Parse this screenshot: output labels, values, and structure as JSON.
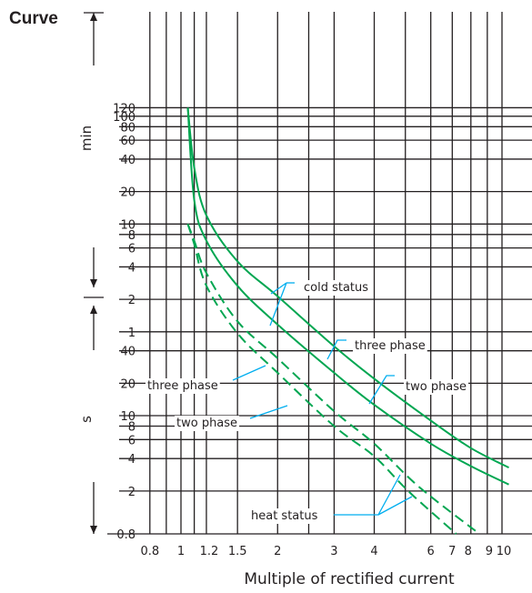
{
  "heading": "Curve",
  "chart_data": {
    "type": "line",
    "xlabel": "Multiple of rectified current",
    "x_scale": "log",
    "xlim": [
      0.7,
      11
    ],
    "x_ticks": [
      0.8,
      1,
      1.2,
      1.5,
      2,
      3,
      4,
      6,
      7,
      8,
      9,
      10
    ],
    "x_tick_labels": [
      "0.8",
      "1",
      "1.2",
      "1.5",
      "2",
      "3",
      "4",
      "6",
      "7",
      "8",
      "9",
      "10"
    ],
    "x_grid": [
      0.8,
      0.9,
      1,
      1.1,
      1.2,
      1.5,
      2,
      2.5,
      3,
      4,
      5,
      6,
      7,
      8,
      9,
      10
    ],
    "y_scale": "log",
    "y_unit_labels": [
      "min",
      "s"
    ],
    "y_ticks_min": [
      1,
      2,
      4,
      6,
      8,
      10,
      20,
      40,
      60,
      80,
      100,
      120
    ],
    "y_tick_labels_min": [
      "1",
      "2",
      "4",
      "6",
      "8",
      "10",
      "20",
      "40",
      "60",
      "80",
      "100",
      "120"
    ],
    "y_ticks_s": [
      0.8,
      2,
      4,
      6,
      8,
      10,
      20,
      40
    ],
    "y_tick_labels_s": [
      "0.8",
      "2",
      "4",
      "6",
      "8",
      "10",
      "20",
      "40"
    ],
    "y_range_s": [
      0.8,
      7200
    ],
    "series": [
      {
        "name": "three phase",
        "status": "cold status",
        "line": "solid",
        "x": [
          1.05,
          1.1,
          1.2,
          1.5,
          2,
          3,
          4,
          6,
          8,
          10.5
        ],
        "y_seconds": [
          7200,
          2000,
          720,
          270,
          128,
          44,
          22,
          9,
          5,
          3.3
        ]
      },
      {
        "name": "two phase",
        "status": "cold status",
        "line": "solid",
        "x": [
          1.05,
          1.1,
          1.2,
          1.5,
          2,
          3,
          4,
          6,
          8,
          10.5
        ],
        "y_seconds": [
          7200,
          1000,
          420,
          160,
          70,
          25,
          12.6,
          5.5,
          3.4,
          2.3
        ]
      },
      {
        "name": "three phase",
        "status": "heat status",
        "line": "dashed",
        "x": [
          1.05,
          1.1,
          1.2,
          1.5,
          2,
          3,
          4,
          5.5,
          8.5
        ],
        "y_seconds": [
          600,
          420,
          210,
          75,
          34,
          11,
          5.5,
          2.2,
          0.8
        ]
      },
      {
        "name": "two phase",
        "status": "heat status",
        "line": "dashed",
        "x": [
          1.05,
          1.1,
          1.2,
          1.5,
          2,
          3,
          4,
          5.1,
          7.2
        ],
        "y_seconds": [
          600,
          390,
          160,
          58,
          25,
          8,
          4.2,
          2,
          0.8
        ]
      }
    ],
    "annotations": [
      "cold status",
      "three phase",
      "two phase",
      "three phase",
      "two phase",
      "heat status"
    ]
  }
}
